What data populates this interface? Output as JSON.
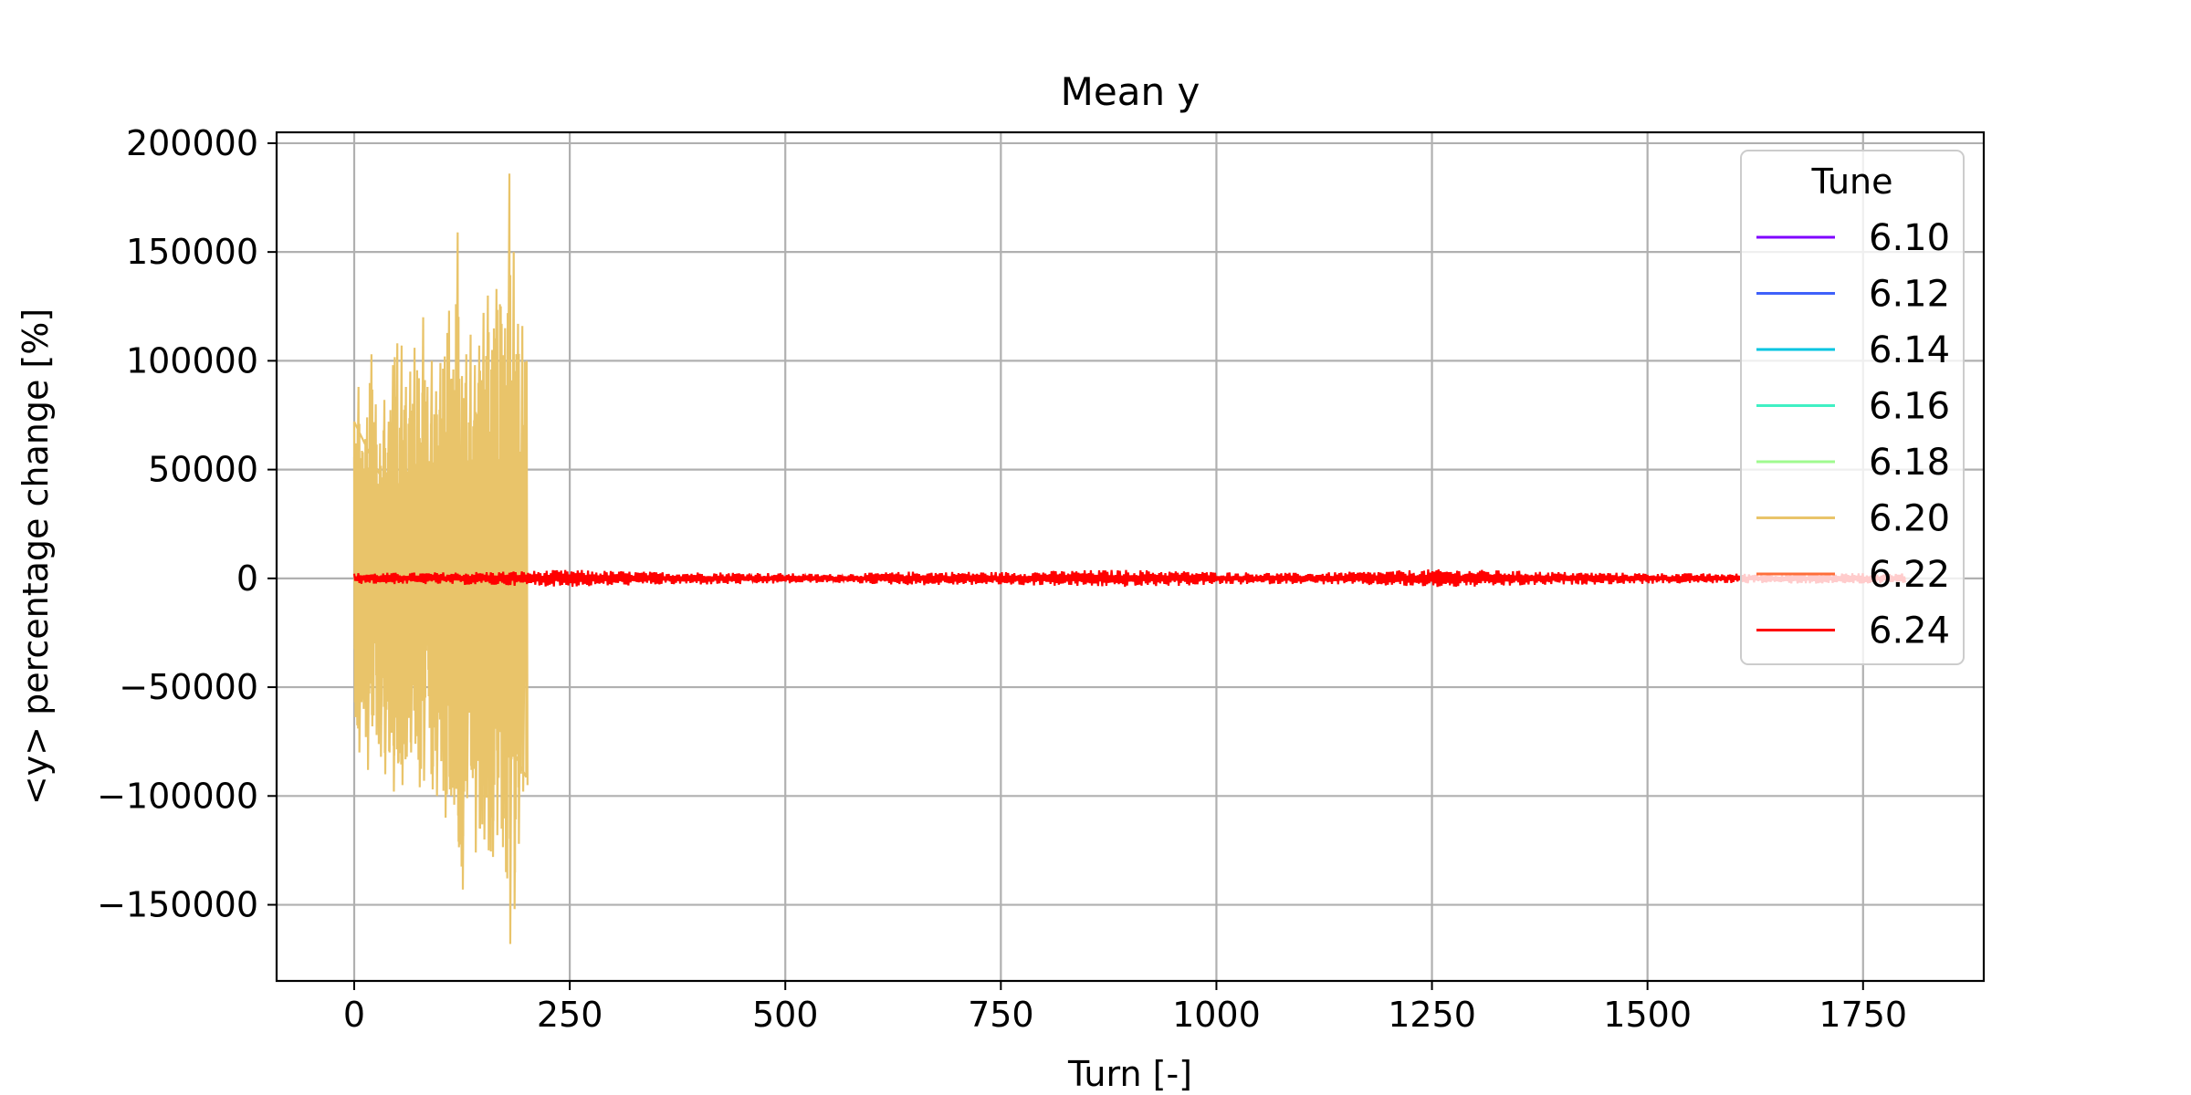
{
  "chart_data": {
    "type": "line",
    "title": "Mean y",
    "xlabel": "Turn [-]",
    "ylabel": "<y> percentage change [%]",
    "xlim": [
      -90,
      1890
    ],
    "ylim": [
      -185000,
      205000
    ],
    "xticks": [
      0,
      250,
      500,
      750,
      1000,
      1250,
      1500,
      1750
    ],
    "xtick_labels": [
      "0",
      "250",
      "500",
      "750",
      "1000",
      "1250",
      "1500",
      "1750"
    ],
    "yticks": [
      200000,
      150000,
      100000,
      50000,
      0,
      -50000,
      -100000,
      -150000
    ],
    "ytick_labels": [
      "200000",
      "150000",
      "100000",
      "50000",
      "0",
      "−50000",
      "−100000",
      "−150000"
    ],
    "grid": true,
    "legend": {
      "title": "Tune",
      "placement": "upper-right"
    },
    "series": [
      {
        "name": "6.10",
        "color": "#7f00ff",
        "x_range": [
          0,
          1800
        ],
        "spread": [],
        "extrema": []
      },
      {
        "name": "6.12",
        "color": "#3f61fa",
        "x_range": [
          0,
          1800
        ],
        "spread": [],
        "extrema": []
      },
      {
        "name": "6.14",
        "color": "#00c4e1",
        "x_range": [
          0,
          1800
        ],
        "spread": [],
        "extrema": []
      },
      {
        "name": "6.16",
        "color": "#40f0c4",
        "x_range": [
          0,
          1800
        ],
        "spread": [],
        "extrema": []
      },
      {
        "name": "6.18",
        "color": "#9ffa8f",
        "x_range": [
          0,
          1800
        ],
        "spread": [],
        "extrema": []
      },
      {
        "name": "6.20",
        "color": "#e9c46a",
        "x_range": [
          0,
          200
        ],
        "spread": [],
        "extrema": [
          [
            0,
            72000,
            -57000
          ],
          [
            5,
            88000,
            -80000
          ],
          [
            10,
            58000,
            -60000
          ],
          [
            15,
            74000,
            -88000
          ],
          [
            20,
            103000,
            -68000
          ],
          [
            25,
            80000,
            -72000
          ],
          [
            30,
            62000,
            -82000
          ],
          [
            35,
            82000,
            -90000
          ],
          [
            40,
            72000,
            -80000
          ],
          [
            45,
            98000,
            -98000
          ],
          [
            50,
            108000,
            -85000
          ],
          [
            55,
            107000,
            -95000
          ],
          [
            60,
            88000,
            -82000
          ],
          [
            65,
            95000,
            -80000
          ],
          [
            70,
            106000,
            -76000
          ],
          [
            75,
            92000,
            -96000
          ],
          [
            80,
            120000,
            -93000
          ],
          [
            85,
            88000,
            -42000
          ],
          [
            90,
            100000,
            -97000
          ],
          [
            95,
            86000,
            -100000
          ],
          [
            100,
            99000,
            -84000
          ],
          [
            105,
            102000,
            -110000
          ],
          [
            110,
            123000,
            -97000
          ],
          [
            115,
            96000,
            -104000
          ],
          [
            120,
            159000,
            -121000
          ],
          [
            125,
            93000,
            -143000
          ],
          [
            130,
            103000,
            -101000
          ],
          [
            135,
            112000,
            -88000
          ],
          [
            140,
            98000,
            -126000
          ],
          [
            145,
            107000,
            -115000
          ],
          [
            150,
            122000,
            -120000
          ],
          [
            155,
            130000,
            -125000
          ],
          [
            160,
            105000,
            -128000
          ],
          [
            165,
            133000,
            -118000
          ],
          [
            170,
            125000,
            -115000
          ],
          [
            175,
            115000,
            -135000
          ],
          [
            180,
            186000,
            -168000
          ],
          [
            185,
            150000,
            -152000
          ],
          [
            190,
            117000,
            -122000
          ],
          [
            195,
            116000,
            -98000
          ],
          [
            200,
            100000,
            -95000
          ]
        ]
      },
      {
        "name": "6.22",
        "color": "#ff6e3a",
        "x_range": [
          0,
          1800
        ],
        "spread": [],
        "extrema": []
      },
      {
        "name": "6.24",
        "color": "#ff0000",
        "x_range": [
          0,
          1800
        ],
        "spread": [
          [
            0,
            2500
          ],
          [
            100,
            2800
          ],
          [
            200,
            3500
          ],
          [
            250,
            4000
          ],
          [
            350,
            3000
          ],
          [
            450,
            2800
          ],
          [
            550,
            2000
          ],
          [
            650,
            3200
          ],
          [
            750,
            3000
          ],
          [
            850,
            3800
          ],
          [
            900,
            4000
          ],
          [
            1000,
            3000
          ],
          [
            1100,
            2500
          ],
          [
            1200,
            3500
          ],
          [
            1250,
            4200
          ],
          [
            1300,
            4000
          ],
          [
            1400,
            3000
          ],
          [
            1500,
            2500
          ],
          [
            1600,
            2200
          ],
          [
            1700,
            2500
          ],
          [
            1800,
            2500
          ]
        ],
        "extrema": []
      }
    ]
  }
}
